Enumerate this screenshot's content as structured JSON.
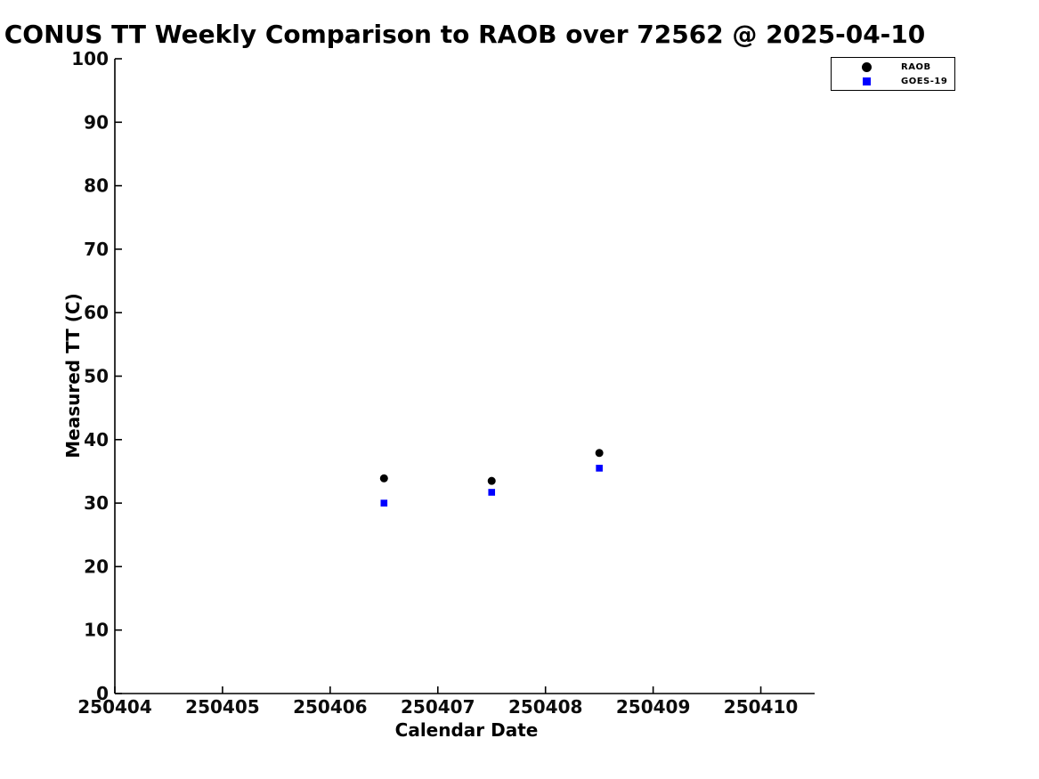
{
  "chart_data": {
    "type": "scatter",
    "title": "CONUS TT Weekly Comparison to RAOB over 72562 @ 2025-04-10",
    "xlabel": "Calendar Date",
    "ylabel": "Measured TT (C)",
    "xlim": [
      250404,
      250410.5
    ],
    "ylim": [
      0,
      100
    ],
    "x_ticks": [
      250404,
      250405,
      250406,
      250407,
      250408,
      250409,
      250410
    ],
    "y_ticks": [
      0,
      10,
      20,
      30,
      40,
      50,
      60,
      70,
      80,
      90,
      100
    ],
    "grid": false,
    "legend_position": "top-right-outside",
    "axis_color": "#000000",
    "series": [
      {
        "name": "RAOB",
        "marker": "circle",
        "color": "#000000",
        "x": [
          250406.5,
          250407.5,
          250408.5
        ],
        "y": [
          33.9,
          33.5,
          37.9
        ]
      },
      {
        "name": "GOES-19",
        "marker": "square",
        "color": "#0000ff",
        "x": [
          250406.5,
          250407.5,
          250408.5
        ],
        "y": [
          30.0,
          31.7,
          35.5
        ]
      }
    ]
  }
}
